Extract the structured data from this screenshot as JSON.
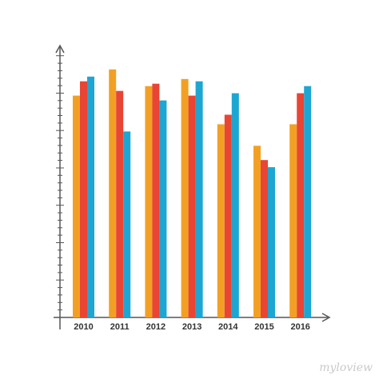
{
  "chart_data": {
    "type": "bar",
    "categories": [
      "2010",
      "2011",
      "2012",
      "2013",
      "2014",
      "2015",
      "2016"
    ],
    "series": [
      {
        "values": [
          84,
          95,
          88,
          91,
          72,
          63,
          72
        ]
      },
      {
        "values": [
          90,
          86,
          89,
          84,
          76,
          57,
          85
        ]
      },
      {
        "values": [
          92,
          69,
          82,
          90,
          85,
          54,
          88
        ]
      }
    ],
    "ylim": [
      -9,
      105
    ],
    "colors": [
      "#f2a024",
      "#e84535",
      "#1ea6d2"
    ],
    "grid": false,
    "axis_color": "#555555"
  },
  "watermark": "myloview"
}
